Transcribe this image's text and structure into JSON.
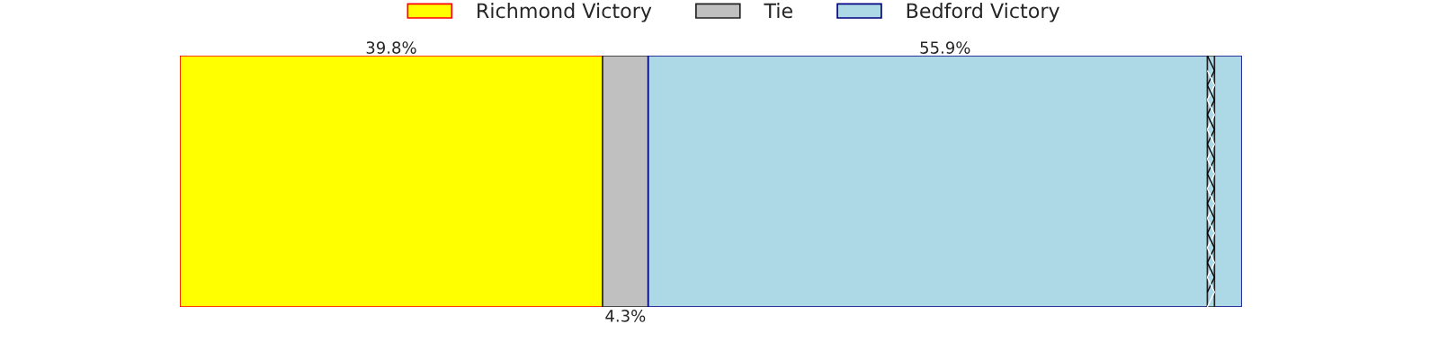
{
  "chart_data": {
    "type": "bar",
    "orientation": "horizontal",
    "stacked": true,
    "categories": [
      null
    ],
    "series": [
      {
        "name": "Richmond Victory",
        "color": "#ffff00",
        "values": [
          39.8
        ],
        "value_labels": [
          "39.8%"
        ]
      },
      {
        "name": "Tie",
        "color": "#c0c0c0",
        "values": [
          4.3
        ],
        "value_labels": [
          "4.3%"
        ]
      },
      {
        "name": "Bedford Victory",
        "color": "#add8e6",
        "values": [
          55.9
        ],
        "value_labels": [
          "55.9%"
        ]
      }
    ],
    "legend": "top",
    "tick_labels": false
  }
}
